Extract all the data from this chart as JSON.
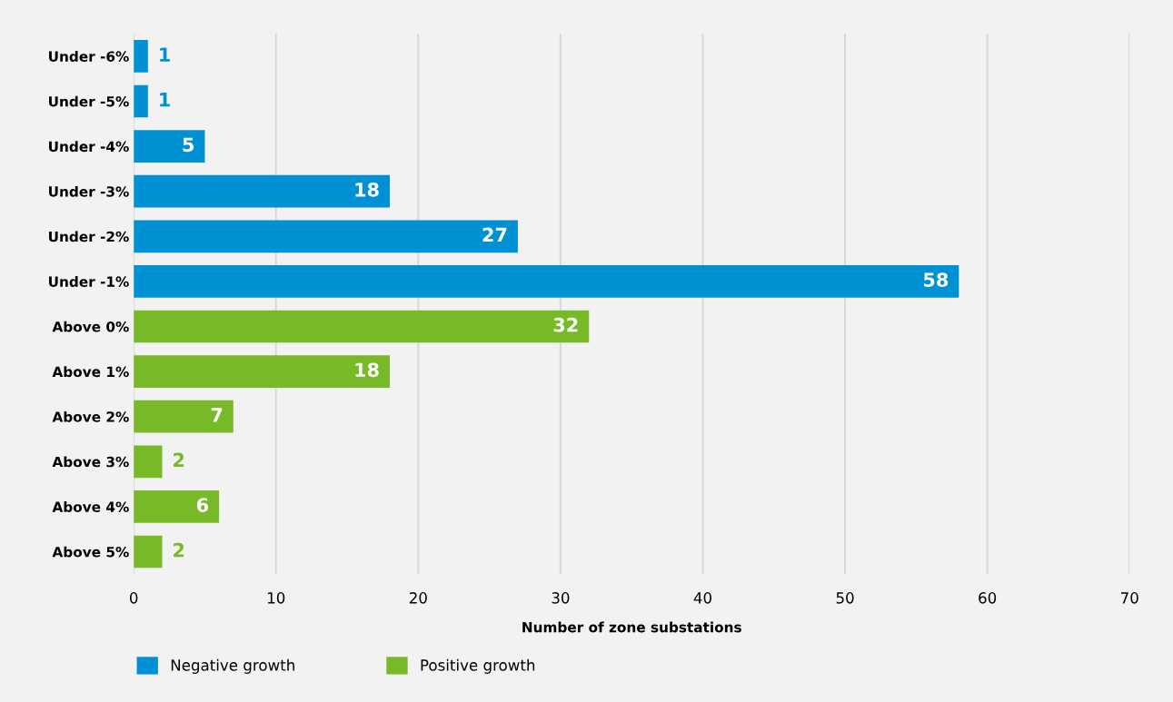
{
  "chart_data": {
    "type": "bar",
    "orientation": "horizontal",
    "xlabel": "Number of zone substations",
    "categories": [
      "Under -6%",
      "Under -5%",
      "Under -4%",
      "Under -3%",
      "Under -2%",
      "Under -1%",
      "Above 0%",
      "Above 1%",
      "Above 2%",
      "Above 3%",
      "Above 4%",
      "Above 5%"
    ],
    "series": [
      {
        "name": "Negative growth",
        "color": "#0091d5",
        "values": [
          1,
          1,
          5,
          18,
          27,
          58,
          null,
          null,
          null,
          null,
          null,
          null
        ]
      },
      {
        "name": "Positive growth",
        "color": "#78b928",
        "values": [
          null,
          null,
          null,
          null,
          null,
          null,
          32,
          18,
          7,
          2,
          6,
          2
        ]
      }
    ],
    "xlim": [
      0,
      70
    ],
    "xticks": [
      0,
      10,
      20,
      30,
      40,
      50,
      60,
      70
    ],
    "grid": "x",
    "legend": "bottom",
    "data_labels": true
  }
}
